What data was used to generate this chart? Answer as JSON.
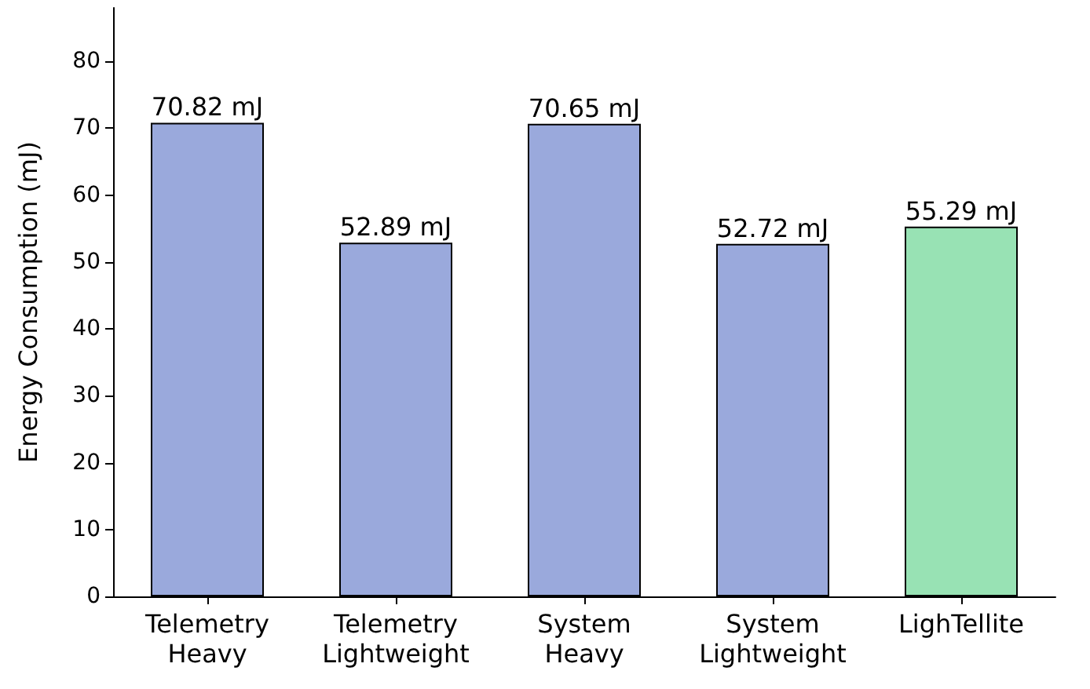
{
  "chart_data": {
    "type": "bar",
    "ylabel": "Energy Consumption (mJ)",
    "categories": [
      "Telemetry Heavy",
      "Telemetry Lightweight",
      "System Heavy",
      "System Lightweight",
      "LighTellite"
    ],
    "values": [
      70.82,
      52.89,
      70.65,
      52.72,
      55.29
    ],
    "colors": [
      "#9aa9dc",
      "#9aa9dc",
      "#9aa9dc",
      "#9aa9dc",
      "#98e2b4"
    ],
    "value_labels": [
      "70.82 mJ",
      "52.89 mJ",
      "70.65 mJ",
      "52.72 mJ",
      "55.29 mJ"
    ],
    "ylim": [
      0,
      88
    ],
    "yticks": [
      0,
      10,
      20,
      30,
      40,
      50,
      60,
      70,
      80
    ],
    "grid": false
  }
}
